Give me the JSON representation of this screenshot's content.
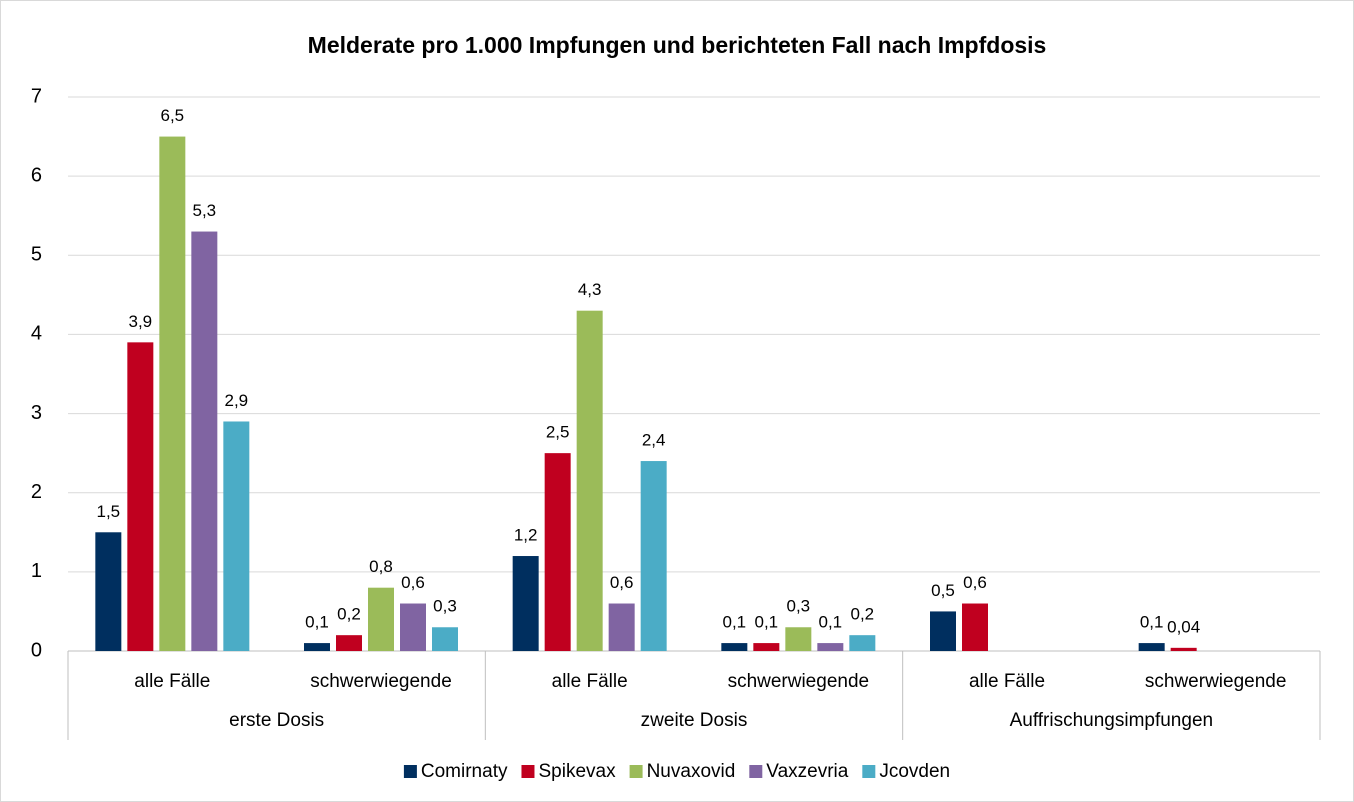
{
  "chart_data": {
    "type": "bar",
    "title": "Melderate pro 1.000 Impfungen und berichteten Fall nach Impfdosis",
    "categories": [
      "alle Fälle",
      "schwerwiegende",
      "alle Fälle",
      "schwerwiegende",
      "alle Fälle",
      "schwerwiegende"
    ],
    "category_groups": [
      "erste Dosis",
      "zweite Dosis",
      "Auffrischungsimpfungen"
    ],
    "series": [
      {
        "name": "Comirnaty",
        "color": "#002f5f",
        "values": [
          1.5,
          0.1,
          1.2,
          0.1,
          0.5,
          0.1
        ],
        "value_labels": [
          "1,5",
          "0,1",
          "1,2",
          "0,1",
          "0,5",
          "0,1"
        ]
      },
      {
        "name": "Spikevax",
        "color": "#c0001f",
        "values": [
          3.9,
          0.2,
          2.5,
          0.1,
          0.6,
          0.04
        ],
        "value_labels": [
          "3,9",
          "0,2",
          "2,5",
          "0,1",
          "0,6",
          "0,04"
        ]
      },
      {
        "name": "Nuvaxovid",
        "color": "#9bbb59",
        "values": [
          6.5,
          0.8,
          4.3,
          0.3,
          null,
          null
        ],
        "value_labels": [
          "6,5",
          "0,8",
          "4,3",
          "0,3",
          null,
          null
        ]
      },
      {
        "name": "Vaxzevria",
        "color": "#8064a2",
        "values": [
          5.3,
          0.6,
          0.6,
          0.1,
          null,
          null
        ],
        "value_labels": [
          "5,3",
          "0,6",
          "0,6",
          "0,1",
          null,
          null
        ]
      },
      {
        "name": "Jcovden",
        "color": "#4bacc6",
        "values": [
          2.9,
          0.3,
          2.4,
          0.2,
          null,
          null
        ],
        "value_labels": [
          "2,9",
          "0,3",
          "2,4",
          "0,2",
          null,
          null
        ]
      }
    ],
    "ylim": [
      0,
      7
    ],
    "yticks": [
      0,
      1,
      2,
      3,
      4,
      5,
      6,
      7
    ],
    "grid": true,
    "legend": "bottom"
  }
}
